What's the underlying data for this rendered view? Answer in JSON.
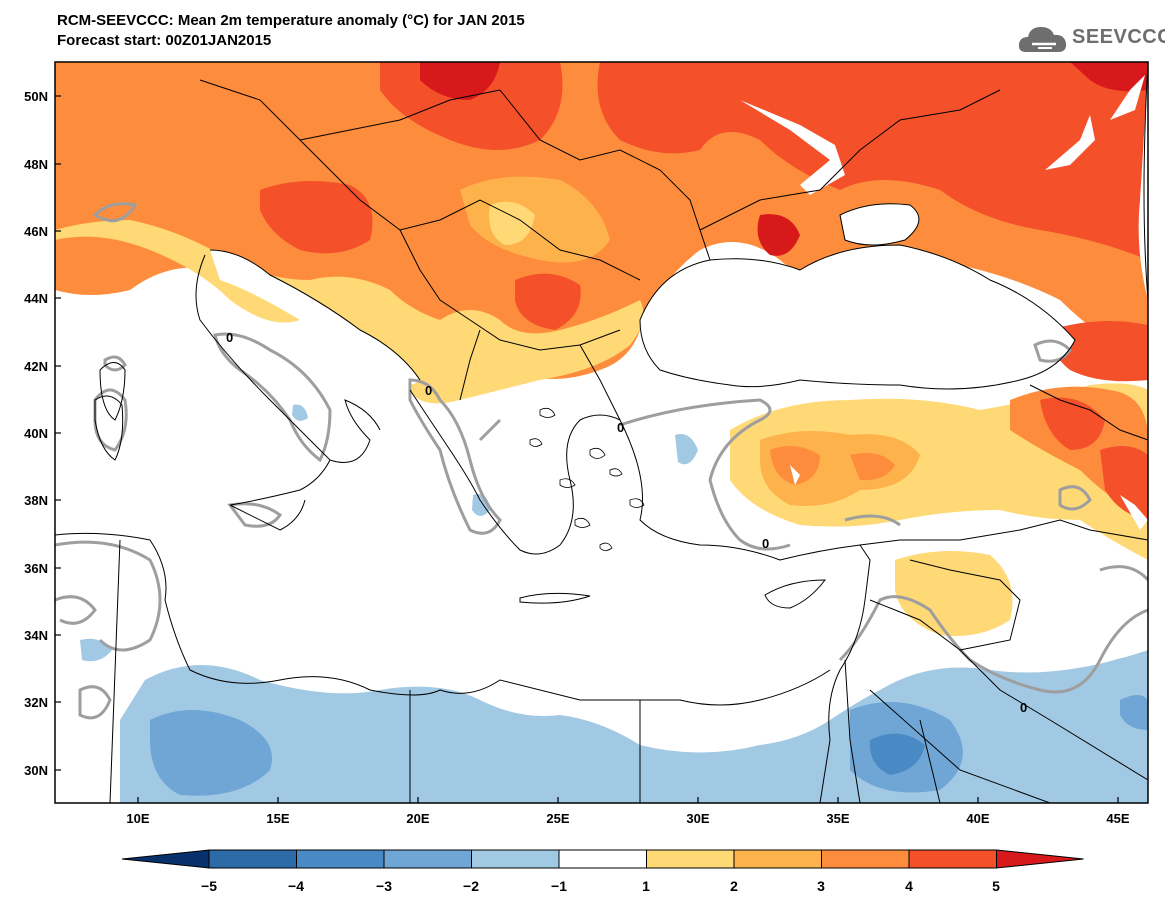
{
  "header": {
    "title_line1": "RCM-SEEVCCC: Mean 2m temperature anomaly (°C) for JAN 2015",
    "title_line2": "Forecast start: 00Z01JAN2015",
    "logo_text": "SEEVCCC"
  },
  "map": {
    "lon_range": [
      7,
      46
    ],
    "lat_range": [
      29,
      51
    ],
    "lon_ticks": [
      "10E",
      "15E",
      "20E",
      "25E",
      "30E",
      "35E",
      "40E",
      "45E"
    ],
    "lat_ticks": [
      "50N",
      "48N",
      "46N",
      "44N",
      "42N",
      "40N",
      "38N",
      "36N",
      "34N",
      "32N",
      "30N"
    ],
    "contour_label": "0",
    "sea_color": "#ffffff",
    "border_color": "#000000"
  },
  "colorbar": {
    "tick_labels": [
      "−5",
      "−4",
      "−3",
      "−2",
      "−1",
      "1",
      "2",
      "3",
      "4",
      "5"
    ],
    "colors": [
      "#08306b",
      "#2c6aa8",
      "#4a8ac4",
      "#6fa6d6",
      "#a2c9e4",
      "#ffffff",
      "#fed976",
      "#feb24c",
      "#fd8d3c",
      "#f4512b",
      "#d7191c"
    ]
  },
  "colors": {
    "red": "#f4512b",
    "dark_red": "#d7191c",
    "orange": "#fd8d3c",
    "light_orange": "#feb24c",
    "yellow": "#fed976",
    "light_blue": "#a2c9e4",
    "mid_blue": "#6fa6d6",
    "blue": "#4a8ac4",
    "zero_contour": "#9e9e9e"
  }
}
